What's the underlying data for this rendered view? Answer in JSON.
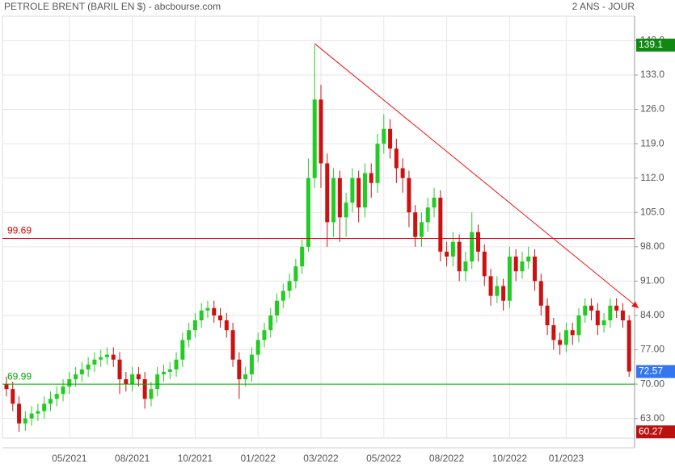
{
  "chart_data": {
    "type": "candlestick",
    "title": "PETROLE BRENT (BARIL EN $) - abcbourse.com",
    "subtitle": "2 ANS - JOUR",
    "categories": [
      null,
      null,
      null,
      null,
      null,
      null,
      null,
      null,
      null,
      null,
      "05/2021",
      null,
      null,
      null,
      null,
      null,
      null,
      null,
      null,
      null,
      "08/2021",
      null,
      null,
      null,
      null,
      null,
      null,
      null,
      null,
      null,
      "10/2021",
      null,
      null,
      null,
      null,
      null,
      null,
      null,
      null,
      null,
      "01/2022",
      null,
      null,
      null,
      null,
      null,
      null,
      null,
      null,
      null,
      "03/2022",
      null,
      null,
      null,
      null,
      null,
      null,
      null,
      null,
      null,
      "05/2022",
      null,
      null,
      null,
      null,
      null,
      null,
      null,
      null,
      null,
      "08/2022",
      null,
      null,
      null,
      null,
      null,
      null,
      null,
      null,
      null,
      "10/2022",
      null,
      null,
      null,
      null,
      null,
      null,
      null,
      null,
      "01/2023",
      null,
      null,
      null,
      null,
      null,
      null,
      null,
      null,
      null,
      null
    ],
    "open": [
      70,
      69,
      66,
      62,
      63,
      64,
      64.5,
      66,
      67,
      68,
      69.5,
      71,
      72,
      73,
      74,
      75,
      75.5,
      76,
      75,
      71,
      70,
      72,
      71,
      67,
      69,
      72,
      72.5,
      73,
      75,
      79,
      81,
      83,
      85,
      85.5,
      84,
      83,
      81,
      75,
      71,
      72,
      76,
      79,
      81,
      84,
      87,
      89,
      91,
      94,
      98,
      112,
      128,
      115,
      103,
      112,
      104,
      107,
      112,
      106,
      113,
      111,
      119,
      122,
      118,
      114,
      112,
      105,
      100,
      103,
      106,
      108,
      97,
      96,
      99,
      93,
      95,
      101,
      97,
      92,
      88,
      90,
      87,
      96,
      93,
      95,
      96,
      91,
      86,
      82,
      79,
      78,
      81,
      80,
      84,
      86,
      85,
      82,
      83,
      86,
      85,
      83
    ],
    "high": [
      71.5,
      70.5,
      67.5,
      64.5,
      65.5,
      66,
      67.5,
      68.5,
      69.5,
      71,
      72.5,
      73.5,
      74.5,
      75.5,
      76.5,
      77,
      77.5,
      77.5,
      76.5,
      72.5,
      73.5,
      73.5,
      72.5,
      70.5,
      73.5,
      74,
      74.5,
      76.5,
      80.5,
      82.5,
      84.5,
      86.5,
      87,
      87,
      85.5,
      84.5,
      82.5,
      76.5,
      73.5,
      77.5,
      80.5,
      82.5,
      85.5,
      88.5,
      90.5,
      92.5,
      95.5,
      99.5,
      116,
      139.1,
      131,
      117,
      114,
      113.5,
      109,
      114,
      113.5,
      115,
      115,
      121,
      125,
      124,
      120,
      116,
      113.5,
      106.5,
      105,
      108,
      110,
      109.5,
      99,
      101,
      100.5,
      97,
      105,
      102.5,
      98.5,
      93.5,
      92,
      91.5,
      98,
      97.5,
      97,
      98,
      97.5,
      92.5,
      87.5,
      83.5,
      80.5,
      82.5,
      82.5,
      85.5,
      87.5,
      87.5,
      86.5,
      84.5,
      87.5,
      87.5,
      86.5,
      84
    ],
    "low": [
      67.5,
      64.5,
      60.27,
      60.5,
      61.5,
      62.5,
      63,
      64.5,
      65.5,
      66.5,
      68,
      69.5,
      70.5,
      71.5,
      72.5,
      73.5,
      74,
      73.5,
      68,
      68.5,
      68.5,
      69.5,
      65,
      65.5,
      67.5,
      70.5,
      71,
      71.5,
      73.5,
      77.5,
      79.5,
      81.5,
      83.5,
      82.5,
      81.5,
      79.5,
      73.5,
      67,
      69.5,
      70.5,
      74.5,
      77.5,
      79.5,
      82.5,
      85.5,
      87.5,
      89.5,
      92.5,
      97,
      110,
      110,
      98,
      100,
      99,
      100,
      105,
      103,
      104,
      108,
      109,
      117,
      116,
      111,
      109,
      102,
      98,
      98,
      101,
      104,
      95,
      94,
      94,
      91,
      91,
      93.5,
      95,
      90,
      86,
      86.5,
      85,
      85.5,
      91,
      91.5,
      93.5,
      89,
      84,
      80,
      77,
      76,
      76.5,
      78,
      78.5,
      82.5,
      83,
      80,
      80.5,
      81.5,
      83.5,
      81.5,
      71.5
    ],
    "close": [
      69,
      66,
      62,
      63,
      64,
      64.5,
      66,
      67,
      68,
      69.5,
      71,
      72,
      73,
      74,
      75,
      75.5,
      76,
      75,
      71,
      70,
      72,
      71,
      67,
      69,
      72,
      72.5,
      73,
      75,
      79,
      81,
      83,
      85,
      85.5,
      84,
      83,
      81,
      75,
      71,
      72,
      76,
      79,
      81,
      84,
      87,
      89,
      91,
      94,
      98,
      112,
      128,
      115,
      103,
      112,
      104,
      107,
      112,
      106,
      113,
      111,
      119,
      122,
      118,
      114,
      112,
      105,
      100,
      103,
      106,
      108,
      97,
      96,
      99,
      93,
      95,
      101,
      97,
      92,
      88,
      90,
      87,
      96,
      93,
      95,
      96,
      91,
      86,
      82,
      79,
      78,
      81,
      80,
      84,
      86,
      85,
      82,
      83,
      86,
      85,
      83,
      72.57
    ],
    "up_color": "#22cc22",
    "down_color": "#cc1111",
    "ylim": [
      59,
      145
    ],
    "yticks": [
      {
        "value": 63,
        "label": "63.00"
      },
      {
        "value": 70,
        "label": "70.00"
      },
      {
        "value": 77,
        "label": "77.00"
      },
      {
        "value": 84,
        "label": "84.00"
      },
      {
        "value": 91,
        "label": "91.00"
      },
      {
        "value": 98,
        "label": "98.00"
      },
      {
        "value": 105,
        "label": "105.0"
      },
      {
        "value": 112,
        "label": "112.0"
      },
      {
        "value": 119,
        "label": "119.0"
      },
      {
        "value": 126,
        "label": "126.0"
      },
      {
        "value": 133,
        "label": "133.0"
      },
      {
        "value": 140,
        "label": "140.0"
      }
    ],
    "grid": true,
    "levels": [
      {
        "value": 99.69,
        "color": "#dd0000"
      },
      {
        "value": 69.99,
        "color": "#00aa00"
      }
    ],
    "trend_line": {
      "x": [
        49,
        100.5
      ],
      "y": [
        139.4,
        85.5
      ],
      "color": "#ee1111"
    },
    "price_tags": [
      {
        "value": 139.1,
        "color": "#118811"
      },
      {
        "value": 72.57,
        "color": "#3377ee"
      },
      {
        "value": 60.27,
        "color": "#bb1111"
      }
    ]
  }
}
